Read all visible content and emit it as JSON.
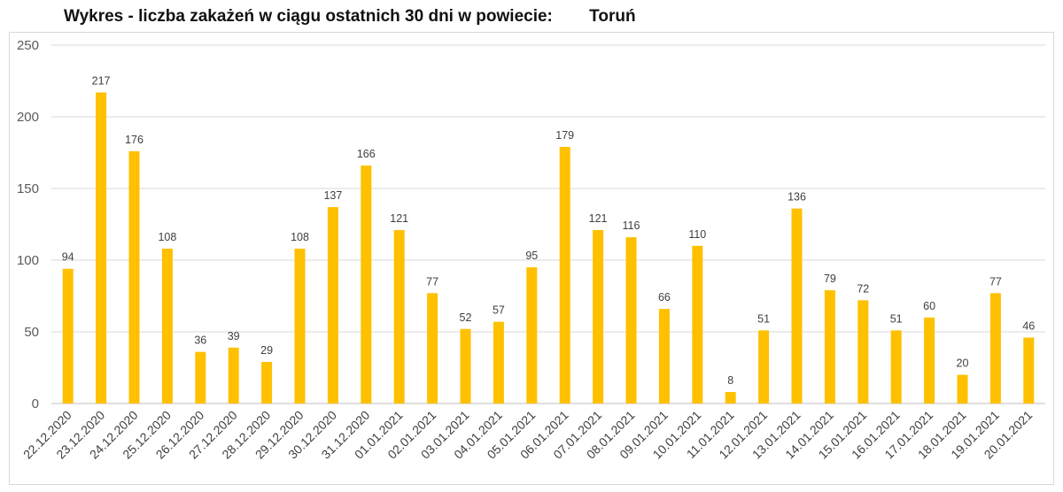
{
  "title": "Wykres - liczba zakażeń w ciągu ostatnich 30 dni w powiecie:",
  "location": "Toruń",
  "colors": {
    "bar": "#FFC000",
    "grid": "#d9d9d9",
    "text": "#404040"
  },
  "chart_data": {
    "type": "bar",
    "title": "Wykres - liczba zakażeń w ciągu ostatnich 30 dni w powiecie: Toruń",
    "xlabel": "",
    "ylabel": "",
    "ylim": [
      0,
      250
    ],
    "yticks": [
      0,
      50,
      100,
      150,
      200,
      250
    ],
    "grid": true,
    "legend": "none",
    "categories": [
      "22.12.2020",
      "23.12.2020",
      "24.12.2020",
      "25.12.2020",
      "26.12.2020",
      "27.12.2020",
      "28.12.2020",
      "29.12.2020",
      "30.12.2020",
      "31.12.2020",
      "01.01.2021",
      "02.01.2021",
      "03.01.2021",
      "04.01.2021",
      "05.01.2021",
      "06.01.2021",
      "07.01.2021",
      "08.01.2021",
      "09.01.2021",
      "10.01.2021",
      "11.01.2021",
      "12.01.2021",
      "13.01.2021",
      "14.01.2021",
      "15.01.2021",
      "16.01.2021",
      "17.01.2021",
      "18.01.2021",
      "19.01.2021",
      "20.01.2021"
    ],
    "values": [
      94,
      217,
      176,
      108,
      36,
      39,
      29,
      108,
      137,
      166,
      121,
      77,
      52,
      57,
      95,
      179,
      121,
      116,
      66,
      110,
      8,
      51,
      136,
      79,
      72,
      51,
      60,
      20,
      77,
      46
    ]
  }
}
